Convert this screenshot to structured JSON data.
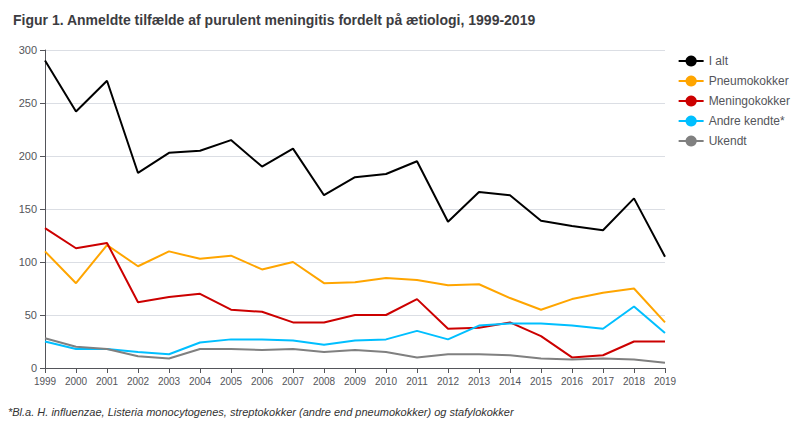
{
  "chart_data": {
    "type": "line",
    "title": "Figur 1. Anmeldte tilfælde af purulent meningitis fordelt på ætiologi, 1999-2019",
    "annotations": [
      "*Bl.a. H. influenzae, Listeria monocytogenes, streptokokker (andre end pneumokokker) og stafylokokker"
    ],
    "x": [
      1999,
      2000,
      2001,
      2002,
      2003,
      2004,
      2005,
      2006,
      2007,
      2008,
      2009,
      2010,
      2011,
      2012,
      2013,
      2014,
      2015,
      2016,
      2017,
      2018,
      2019
    ],
    "series": [
      {
        "name": "I alt",
        "color": "#000000",
        "values": [
          290,
          242,
          271,
          184,
          203,
          205,
          215,
          190,
          207,
          163,
          180,
          183,
          195,
          138,
          166,
          163,
          139,
          134,
          130,
          160,
          105
        ]
      },
      {
        "name": "Pneumokokker",
        "color": "#FFA500",
        "values": [
          110,
          80,
          116,
          96,
          110,
          103,
          106,
          93,
          100,
          80,
          81,
          85,
          83,
          78,
          79,
          66,
          55,
          65,
          71,
          75,
          43
        ]
      },
      {
        "name": "Meningokokker",
        "color": "#CC0000",
        "values": [
          132,
          113,
          118,
          62,
          67,
          70,
          55,
          53,
          43,
          43,
          50,
          50,
          65,
          37,
          38,
          43,
          30,
          10,
          12,
          25,
          25
        ]
      },
      {
        "name": "Andre kendte*",
        "color": "#00BFFF",
        "values": [
          25,
          18,
          18,
          15,
          13,
          24,
          27,
          27,
          26,
          22,
          26,
          27,
          35,
          27,
          40,
          42,
          42,
          40,
          37,
          58,
          33
        ]
      },
      {
        "name": "Ukendt",
        "color": "#808080",
        "values": [
          28,
          20,
          18,
          11,
          9,
          18,
          18,
          17,
          18,
          15,
          17,
          15,
          10,
          13,
          13,
          12,
          9,
          8,
          9,
          8,
          5
        ]
      }
    ],
    "xlim": [
      1999,
      2019
    ],
    "xticks": [
      1999,
      2000,
      2001,
      2002,
      2003,
      2004,
      2005,
      2006,
      2007,
      2008,
      2009,
      2010,
      2011,
      2012,
      2013,
      2014,
      2015,
      2016,
      2017,
      2018,
      2019
    ],
    "ylim": [
      0,
      300
    ],
    "yticks": [
      0,
      50,
      100,
      150,
      200,
      250,
      300
    ],
    "grid": true,
    "legend": "right"
  }
}
